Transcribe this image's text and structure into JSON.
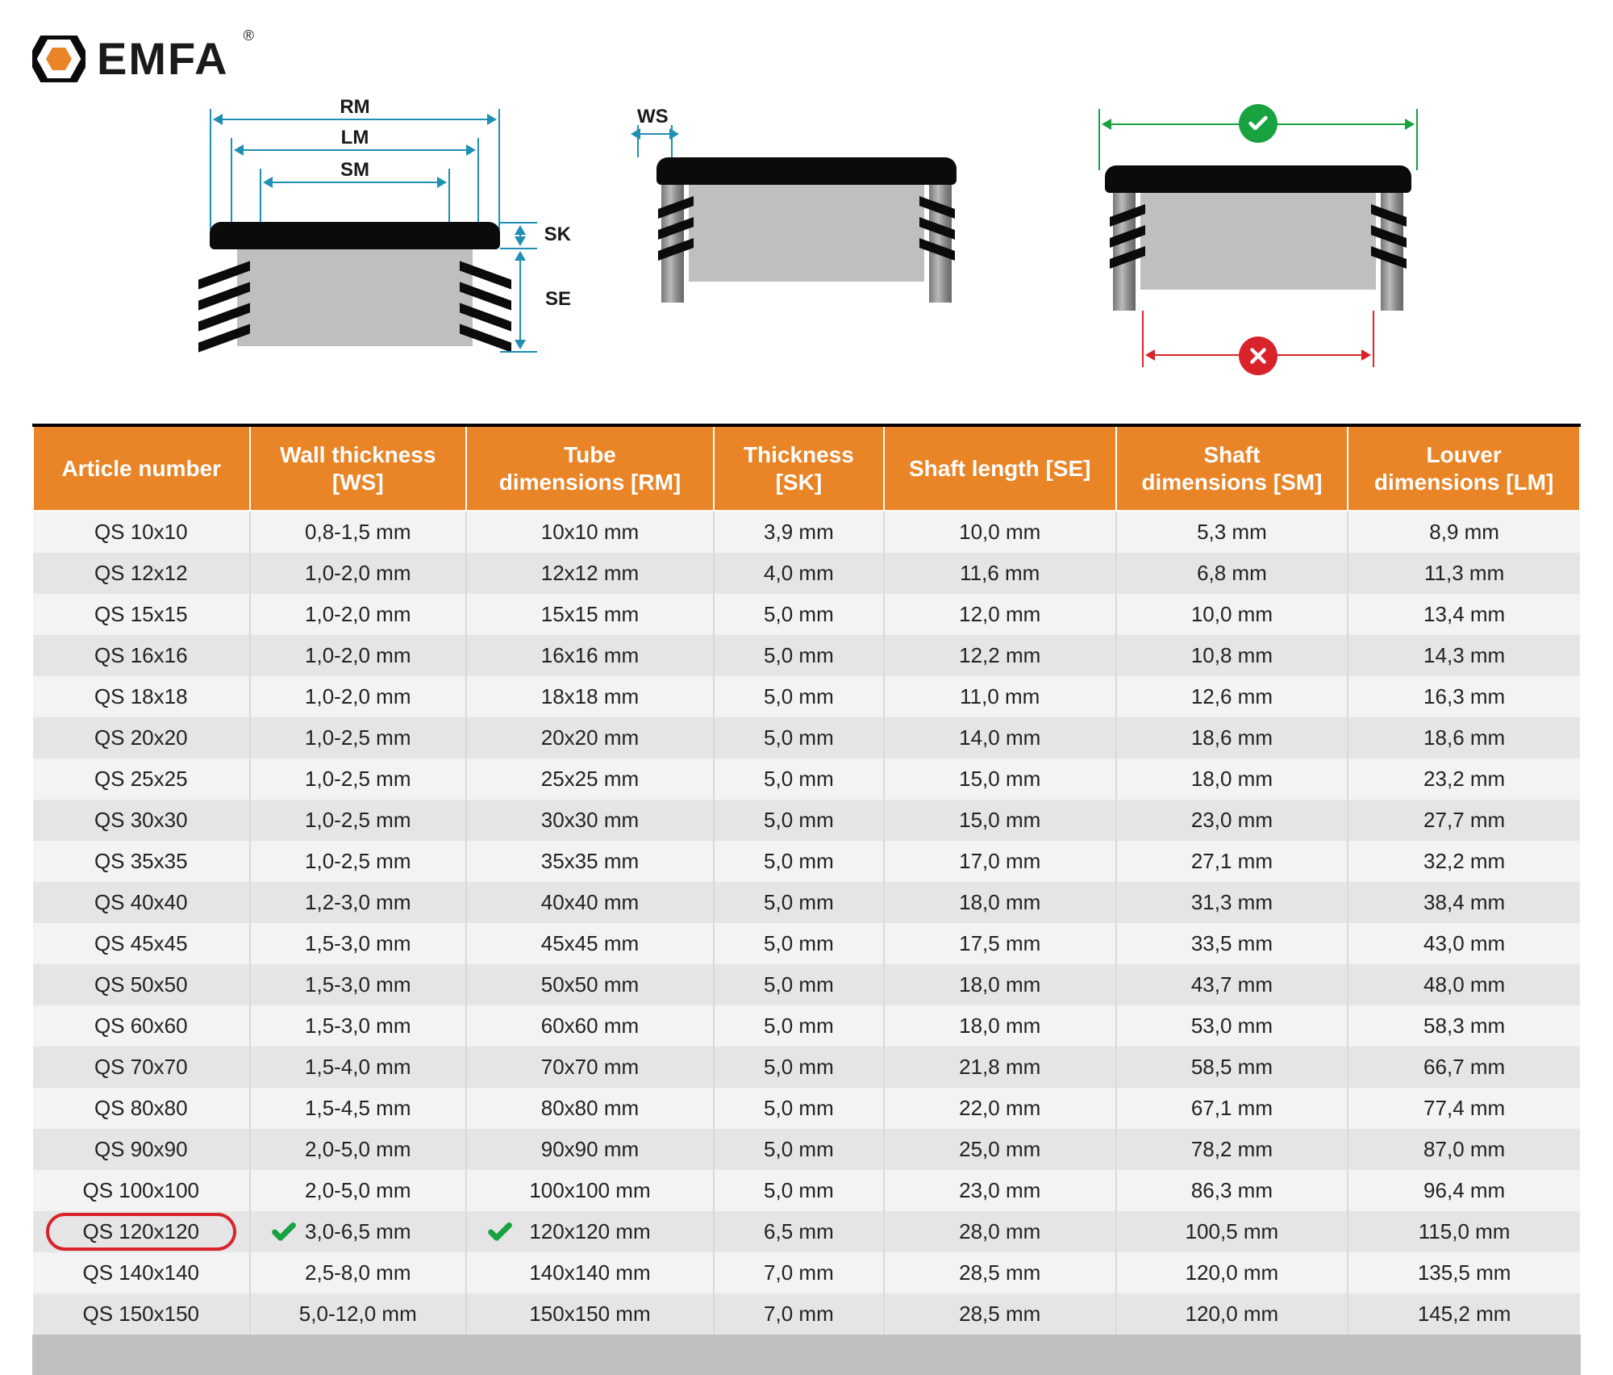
{
  "brand": {
    "name": "EMFA",
    "registered": "®"
  },
  "colors": {
    "accent": "#e98427",
    "header_text": "#ffffff",
    "dim_line": "#1f8fb3",
    "correct": "#18a240",
    "incorrect": "#d8232a",
    "row_odd": "#f3f3f3",
    "row_even": "#e5e5e5",
    "footer": "#bfbfbf",
    "black": "#0b0b0b"
  },
  "diagram_labels": {
    "RM": "RM",
    "LM": "LM",
    "SM": "SM",
    "SK": "SK",
    "SE": "SE",
    "WS": "WS"
  },
  "table": {
    "columns": [
      "Article number",
      "Wall thickness [WS]",
      "Tube dimensions [RM]",
      "Thickness [SK]",
      "Shaft length [SE]",
      "Shaft dimensions [SM]",
      "Louver dimensions [LM]"
    ],
    "col_widths_pct": [
      14,
      14,
      16,
      11,
      15,
      15,
      15
    ],
    "highlight_row_index": 17,
    "rows": [
      [
        "QS 10x10",
        "0,8-1,5 mm",
        "10x10 mm",
        "3,9 mm",
        "10,0 mm",
        "5,3 mm",
        "8,9 mm"
      ],
      [
        "QS 12x12",
        "1,0-2,0 mm",
        "12x12 mm",
        "4,0 mm",
        "11,6 mm",
        "6,8 mm",
        "11,3 mm"
      ],
      [
        "QS 15x15",
        "1,0-2,0 mm",
        "15x15 mm",
        "5,0 mm",
        "12,0 mm",
        "10,0 mm",
        "13,4 mm"
      ],
      [
        "QS 16x16",
        "1,0-2,0 mm",
        "16x16 mm",
        "5,0 mm",
        "12,2 mm",
        "10,8 mm",
        "14,3 mm"
      ],
      [
        "QS 18x18",
        "1,0-2,0 mm",
        "18x18 mm",
        "5,0 mm",
        "11,0 mm",
        "12,6 mm",
        "16,3 mm"
      ],
      [
        "QS 20x20",
        "1,0-2,5 mm",
        "20x20 mm",
        "5,0 mm",
        "14,0 mm",
        "18,6 mm",
        "18,6 mm"
      ],
      [
        "QS 25x25",
        "1,0-2,5 mm",
        "25x25 mm",
        "5,0 mm",
        "15,0 mm",
        "18,0 mm",
        "23,2 mm"
      ],
      [
        "QS 30x30",
        "1,0-2,5 mm",
        "30x30 mm",
        "5,0 mm",
        "15,0 mm",
        "23,0 mm",
        "27,7 mm"
      ],
      [
        "QS 35x35",
        "1,0-2,5 mm",
        "35x35 mm",
        "5,0 mm",
        "17,0 mm",
        "27,1 mm",
        "32,2 mm"
      ],
      [
        "QS 40x40",
        "1,2-3,0 mm",
        "40x40 mm",
        "5,0 mm",
        "18,0 mm",
        "31,3 mm",
        "38,4 mm"
      ],
      [
        "QS 45x45",
        "1,5-3,0 mm",
        "45x45 mm",
        "5,0 mm",
        "17,5 mm",
        "33,5 mm",
        "43,0 mm"
      ],
      [
        "QS 50x50",
        "1,5-3,0 mm",
        "50x50 mm",
        "5,0 mm",
        "18,0 mm",
        "43,7 mm",
        "48,0 mm"
      ],
      [
        "QS 60x60",
        "1,5-3,0 mm",
        "60x60 mm",
        "5,0 mm",
        "18,0 mm",
        "53,0 mm",
        "58,3 mm"
      ],
      [
        "QS 70x70",
        "1,5-4,0 mm",
        "70x70 mm",
        "5,0 mm",
        "21,8 mm",
        "58,5 mm",
        "66,7 mm"
      ],
      [
        "QS 80x80",
        "1,5-4,5 mm",
        "80x80 mm",
        "5,0 mm",
        "22,0 mm",
        "67,1 mm",
        "77,4 mm"
      ],
      [
        "QS 90x90",
        "2,0-5,0 mm",
        "90x90 mm",
        "5,0 mm",
        "25,0 mm",
        "78,2 mm",
        "87,0 mm"
      ],
      [
        "QS 100x100",
        "2,0-5,0 mm",
        "100x100 mm",
        "5,0 mm",
        "23,0 mm",
        "86,3 mm",
        "96,4 mm"
      ],
      [
        "QS 120x120",
        "3,0-6,5 mm",
        "120x120 mm",
        "6,5 mm",
        "28,0 mm",
        "100,5 mm",
        "115,0 mm"
      ],
      [
        "QS 140x140",
        "2,5-8,0 mm",
        "140x140 mm",
        "7,0 mm",
        "28,5 mm",
        "120,0 mm",
        "135,5 mm"
      ],
      [
        "QS 150x150",
        "5,0-12,0 mm",
        "150x150 mm",
        "7,0 mm",
        "28,5 mm",
        "120,0 mm",
        "145,2 mm"
      ]
    ]
  }
}
